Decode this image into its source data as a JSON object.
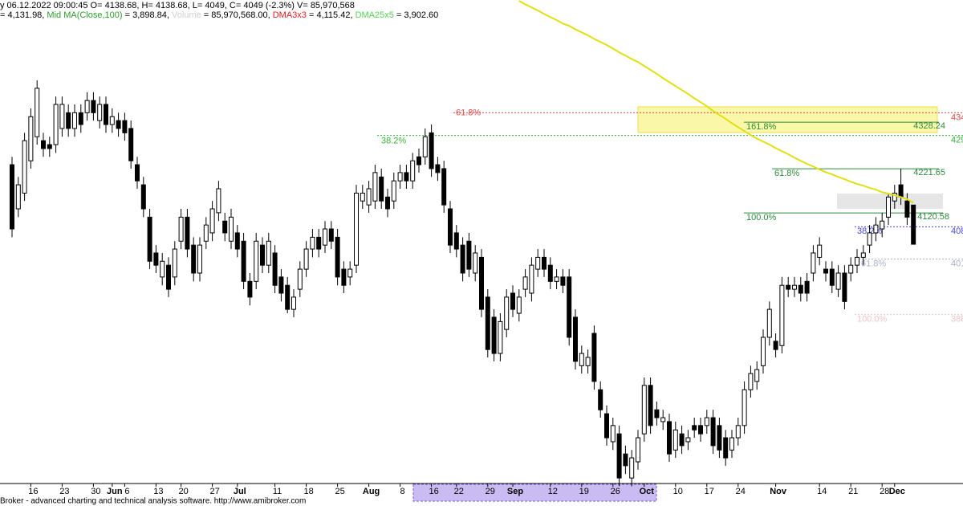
{
  "chart_data": {
    "type": "candlestick",
    "header_lines": [
      [
        {
          "text": "y 06.12.2022 09:00:45 O= 4138.68, H= 4138.68, L= 4049, C= 4049 (-2.3%) V= 85,970,568",
          "color": "#000000"
        }
      ],
      [
        {
          "text": "= 4,131.98, ",
          "color": "#000000"
        },
        {
          "text": "Mid MA(Close,100)",
          "color": "#2e9a2e"
        },
        {
          "text": " = 3,898.84, ",
          "color": "#000000"
        },
        {
          "text": "Volume",
          "color": "#d0d0d0"
        },
        {
          "text": " = 85,970,568.00, ",
          "color": "#000000"
        },
        {
          "text": "DMA3x3",
          "color": "#e02020"
        },
        {
          "text": " = 4,115.42, ",
          "color": "#000000"
        },
        {
          "text": "DMA25x5",
          "color": "#58d058"
        },
        {
          "text": " = 3,902.60",
          "color": "#000000"
        }
      ]
    ],
    "footer": "Broker - advanced charting and technical analysis software. http://www.amibroker.com",
    "ylim": [
      3505,
      4608
    ],
    "up_color": "#ffffff",
    "down_color": "#000000",
    "ma_color": "#e0e010",
    "categories": [
      null,
      null,
      null,
      "16",
      null,
      null,
      null,
      null,
      "23",
      null,
      null,
      null,
      null,
      "30",
      null,
      null,
      "Jun",
      null,
      "6",
      null,
      null,
      null,
      null,
      "13",
      null,
      null,
      null,
      "20",
      null,
      null,
      null,
      null,
      "27",
      null,
      null,
      null,
      "Jul",
      null,
      null,
      null,
      null,
      null,
      "11",
      null,
      null,
      null,
      null,
      "18",
      null,
      null,
      null,
      null,
      "25",
      null,
      null,
      null,
      null,
      "Aug",
      null,
      null,
      null,
      null,
      "8",
      null,
      null,
      null,
      null,
      "16",
      null,
      null,
      null,
      "22",
      null,
      null,
      null,
      null,
      "29",
      null,
      null,
      null,
      "Sep",
      null,
      null,
      null,
      null,
      null,
      "12",
      null,
      null,
      null,
      null,
      "19",
      null,
      null,
      null,
      null,
      "26",
      null,
      null,
      null,
      null,
      "Oct",
      null,
      null,
      null,
      null,
      "10",
      null,
      null,
      null,
      null,
      "17",
      null,
      null,
      null,
      null,
      "24",
      null,
      null,
      null,
      null,
      null,
      "Nov",
      null,
      null,
      null,
      null,
      null,
      null,
      "14",
      null,
      null,
      null,
      null,
      "21",
      null,
      null,
      null,
      null,
      "28",
      null,
      "Dec",
      null,
      null,
      null
    ],
    "candles": [
      [
        4231,
        4249,
        4065,
        4084
      ],
      [
        4130,
        4203,
        4111,
        4185
      ],
      [
        4166,
        4304,
        4148,
        4286
      ],
      [
        4240,
        4360,
        4222,
        4341
      ],
      [
        4295,
        4424,
        4277,
        4406
      ],
      [
        4286,
        4304,
        4249,
        4268
      ],
      [
        4277,
        4295,
        4249,
        4268
      ],
      [
        4277,
        4387,
        4258,
        4369
      ],
      [
        4314,
        4387,
        4295,
        4369
      ],
      [
        4350,
        4369,
        4295,
        4314
      ],
      [
        4314,
        4369,
        4295,
        4350
      ],
      [
        4350,
        4369,
        4304,
        4323
      ],
      [
        4350,
        4397,
        4332,
        4378
      ],
      [
        4378,
        4397,
        4332,
        4350
      ],
      [
        4332,
        4387,
        4314,
        4369
      ],
      [
        4369,
        4387,
        4304,
        4323
      ],
      [
        4323,
        4360,
        4304,
        4341
      ],
      [
        4332,
        4350,
        4295,
        4314
      ],
      [
        4332,
        4350,
        4286,
        4304
      ],
      [
        4314,
        4332,
        4222,
        4240
      ],
      [
        4231,
        4249,
        4176,
        4194
      ],
      [
        4185,
        4203,
        4111,
        4130
      ],
      [
        4111,
        4130,
        3992,
        4010
      ],
      [
        4029,
        4047,
        3983,
        4001
      ],
      [
        3974,
        4029,
        3955,
        4010
      ],
      [
        4001,
        4019,
        3928,
        3946
      ],
      [
        3974,
        4056,
        3955,
        4038
      ],
      [
        4056,
        4130,
        4038,
        4111
      ],
      [
        4111,
        4130,
        4019,
        4038
      ],
      [
        4047,
        4065,
        3964,
        3983
      ],
      [
        3983,
        4065,
        3964,
        4047
      ],
      [
        4056,
        4111,
        4038,
        4093
      ],
      [
        4075,
        4148,
        4056,
        4130
      ],
      [
        4121,
        4194,
        4102,
        4176
      ],
      [
        4102,
        4121,
        4056,
        4075
      ],
      [
        4056,
        4130,
        4038,
        4111
      ],
      [
        4075,
        4093,
        4019,
        4038
      ],
      [
        4056,
        4075,
        3946,
        3964
      ],
      [
        3964,
        3983,
        3909,
        3928
      ],
      [
        3964,
        4075,
        3946,
        4056
      ],
      [
        4047,
        4065,
        3983,
        4001
      ],
      [
        4001,
        4075,
        3983,
        4056
      ],
      [
        4029,
        4047,
        3937,
        3955
      ],
      [
        3974,
        3992,
        3918,
        3937
      ],
      [
        3955,
        3974,
        3891,
        3900
      ],
      [
        3900,
        3946,
        3882,
        3928
      ],
      [
        3946,
        4010,
        3928,
        3992
      ],
      [
        3992,
        4056,
        3974,
        4038
      ],
      [
        4038,
        4084,
        4019,
        4065
      ],
      [
        4065,
        4084,
        4019,
        4038
      ],
      [
        4047,
        4102,
        4029,
        4084
      ],
      [
        4084,
        4102,
        4038,
        4056
      ],
      [
        4065,
        4084,
        3955,
        3974
      ],
      [
        3992,
        4010,
        3937,
        3955
      ],
      [
        3974,
        4010,
        3955,
        3992
      ],
      [
        4001,
        4185,
        3983,
        4166
      ],
      [
        4148,
        4185,
        4130,
        4166
      ],
      [
        4139,
        4194,
        4121,
        4176
      ],
      [
        4148,
        4231,
        4130,
        4213
      ],
      [
        4203,
        4222,
        4130,
        4148
      ],
      [
        4157,
        4176,
        4111,
        4130
      ],
      [
        4148,
        4213,
        4130,
        4194
      ],
      [
        4194,
        4231,
        4176,
        4213
      ],
      [
        4213,
        4231,
        4176,
        4194
      ],
      [
        4194,
        4258,
        4176,
        4240
      ],
      [
        4249,
        4268,
        4213,
        4231
      ],
      [
        4249,
        4314,
        4231,
        4295
      ],
      [
        4304,
        4323,
        4203,
        4222
      ],
      [
        4231,
        4249,
        4194,
        4213
      ],
      [
        4222,
        4240,
        4121,
        4139
      ],
      [
        4130,
        4148,
        4029,
        4047
      ],
      [
        4075,
        4093,
        4019,
        4038
      ],
      [
        4047,
        4065,
        3964,
        3983
      ],
      [
        4056,
        4075,
        3974,
        3992
      ],
      [
        3983,
        4047,
        3964,
        4029
      ],
      [
        4019,
        4038,
        3882,
        3900
      ],
      [
        3928,
        3946,
        3790,
        3808
      ],
      [
        3882,
        3900,
        3781,
        3799
      ],
      [
        3799,
        3891,
        3781,
        3872
      ],
      [
        3854,
        3946,
        3836,
        3928
      ],
      [
        3937,
        3955,
        3882,
        3900
      ],
      [
        3891,
        3946,
        3872,
        3928
      ],
      [
        3946,
        3992,
        3928,
        3974
      ],
      [
        3937,
        4019,
        3918,
        4001
      ],
      [
        3992,
        4038,
        3974,
        4019
      ],
      [
        4019,
        4038,
        3974,
        3992
      ],
      [
        4001,
        4019,
        3946,
        3964
      ],
      [
        3964,
        3992,
        3946,
        3974
      ],
      [
        3974,
        3992,
        3937,
        3955
      ],
      [
        3974,
        3992,
        3817,
        3836
      ],
      [
        3882,
        3900,
        3762,
        3781
      ],
      [
        3771,
        3817,
        3753,
        3799
      ],
      [
        3771,
        3808,
        3753,
        3790
      ],
      [
        3845,
        3863,
        3716,
        3735
      ],
      [
        3716,
        3735,
        3652,
        3670
      ],
      [
        3661,
        3680,
        3588,
        3606
      ],
      [
        3597,
        3652,
        3578,
        3634
      ],
      [
        3615,
        3634,
        3495,
        3514
      ],
      [
        3569,
        3588,
        3523,
        3542
      ],
      [
        3514,
        3578,
        3495,
        3560
      ],
      [
        3551,
        3624,
        3533,
        3606
      ],
      [
        3615,
        3744,
        3597,
        3726
      ],
      [
        3726,
        3744,
        3615,
        3634
      ],
      [
        3670,
        3689,
        3634,
        3652
      ],
      [
        3643,
        3670,
        3624,
        3652
      ],
      [
        3643,
        3661,
        3551,
        3569
      ],
      [
        3578,
        3643,
        3560,
        3624
      ],
      [
        3615,
        3634,
        3569,
        3588
      ],
      [
        3597,
        3624,
        3578,
        3606
      ],
      [
        3634,
        3652,
        3606,
        3624
      ],
      [
        3634,
        3652,
        3597,
        3615
      ],
      [
        3634,
        3670,
        3615,
        3652
      ],
      [
        3652,
        3670,
        3569,
        3588
      ],
      [
        3634,
        3652,
        3560,
        3578
      ],
      [
        3606,
        3624,
        3542,
        3560
      ],
      [
        3578,
        3624,
        3560,
        3606
      ],
      [
        3606,
        3652,
        3588,
        3634
      ],
      [
        3634,
        3735,
        3615,
        3716
      ],
      [
        3716,
        3771,
        3698,
        3753
      ],
      [
        3735,
        3781,
        3716,
        3762
      ],
      [
        3771,
        3854,
        3753,
        3836
      ],
      [
        3836,
        3918,
        3817,
        3900
      ],
      [
        3827,
        3845,
        3790,
        3808
      ],
      [
        3817,
        3974,
        3799,
        3955
      ],
      [
        3955,
        3974,
        3928,
        3946
      ],
      [
        3946,
        3974,
        3928,
        3955
      ],
      [
        3955,
        3974,
        3918,
        3937
      ],
      [
        3964,
        3983,
        3918,
        3937
      ],
      [
        3983,
        4047,
        3964,
        4029
      ],
      [
        4019,
        4065,
        4001,
        4047
      ],
      [
        3992,
        4010,
        3964,
        3983
      ],
      [
        3992,
        4010,
        3937,
        3955
      ],
      [
        3946,
        4001,
        3928,
        3983
      ],
      [
        3983,
        4001,
        3900,
        3918
      ],
      [
        3983,
        4019,
        3964,
        4001
      ],
      [
        4001,
        4038,
        3983,
        4019
      ],
      [
        4019,
        4047,
        4001,
        4029
      ],
      [
        4047,
        4093,
        4029,
        4075
      ],
      [
        4075,
        4111,
        4056,
        4093
      ],
      [
        4084,
        4121,
        4065,
        4102
      ],
      [
        4111,
        4166,
        4093,
        4157
      ],
      [
        4148,
        4185,
        4130,
        4166
      ],
      [
        4185,
        4222,
        4139,
        4157
      ],
      [
        4148,
        4166,
        4093,
        4111
      ],
      [
        4138.68,
        4138.68,
        4049,
        4049
      ]
    ],
    "ma": [
      null,
      null,
      null,
      null,
      null,
      null,
      null,
      null,
      null,
      null,
      null,
      null,
      null,
      null,
      null,
      null,
      null,
      null,
      null,
      null,
      null,
      null,
      null,
      null,
      null,
      null,
      null,
      null,
      null,
      null,
      null,
      null,
      null,
      null,
      null,
      null,
      null,
      null,
      null,
      null,
      null,
      null,
      null,
      null,
      null,
      null,
      null,
      null,
      null,
      null,
      null,
      null,
      null,
      null,
      null,
      null,
      null,
      null,
      null,
      null,
      null,
      null,
      null,
      null,
      null,
      null,
      null,
      null,
      null,
      null,
      null,
      null,
      null,
      null,
      null,
      null,
      null,
      null,
      null,
      null,
      null,
      4606,
      4598,
      4591,
      4584,
      4576,
      4569,
      4562,
      4554,
      4549,
      4541,
      4534,
      4527,
      4519,
      4512,
      4505,
      4497,
      4488,
      4481,
      4473,
      4466,
      4457,
      4448,
      4439,
      4429,
      4420,
      4411,
      4402,
      4393,
      4383,
      4374,
      4365,
      4354,
      4345,
      4336,
      4326,
      4317,
      4308,
      4299,
      4291,
      4284,
      4277,
      4269,
      4262,
      4255,
      4247,
      4240,
      4233,
      4227,
      4220,
      4214,
      4209,
      4203,
      4198,
      4192,
      4187,
      4183,
      4178,
      4174,
      4168,
      4165,
      4161,
      4157,
      4152,
      4144
    ],
    "fib_levels": [
      {
        "label": "61.8%",
        "value": 4350,
        "right_label": "434",
        "color": "#e04848",
        "dashed": true
      },
      {
        "label": "38.2%",
        "value": 4298,
        "right_label": "429",
        "color": "#38b038",
        "dashed": true
      },
      {
        "label": "161.8%",
        "value": 4328.24,
        "price_label": "4328.24",
        "color": "#2e8b3e",
        "dashed": false
      },
      {
        "label": "61.8%",
        "value": 4221.65,
        "price_label": "4221.65",
        "color": "#2e8b3e",
        "dashed": false
      },
      {
        "label": "100.0%",
        "value": 4120.58,
        "price_label": "4120.58",
        "color": "#2e8b3e",
        "dashed": false
      },
      {
        "label": "38.2%",
        "value": 4089,
        "right_label": "408",
        "color": "#4848e0",
        "dashed": true
      },
      {
        "label": "61.8%",
        "value": 4015,
        "right_label": "401",
        "color": "#a8b0cc",
        "dashed": true
      },
      {
        "label": "100.0%",
        "value": 3888,
        "right_label": "388",
        "color": "#f0c4c4",
        "dashed": true
      }
    ]
  }
}
